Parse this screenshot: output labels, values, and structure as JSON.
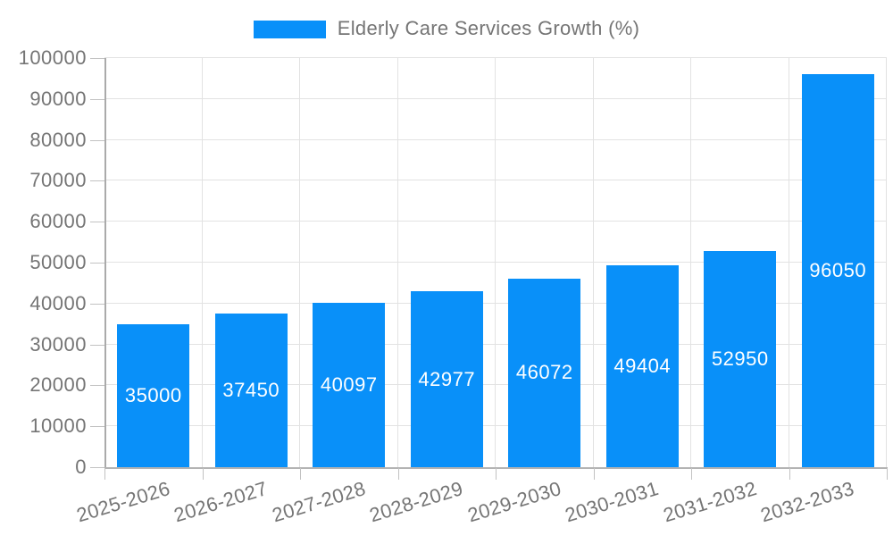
{
  "legend": {
    "position": "top-center"
  },
  "chart_data": {
    "type": "bar",
    "title": "Elderly Care Services Growth (%)",
    "categories": [
      "2025-2026",
      "2026-2027",
      "2027-2028",
      "2028-2029",
      "2029-2030",
      "2030-2031",
      "2031-2032",
      "2032-2033"
    ],
    "values": [
      35000,
      37450,
      40097,
      42977,
      46072,
      49404,
      52950,
      96050
    ],
    "value_labels": [
      "35000",
      "37450",
      "40097",
      "42977",
      "46072",
      "49404",
      "52950",
      "96050"
    ],
    "yticks": [
      "0",
      "10000",
      "20000",
      "30000",
      "40000",
      "50000",
      "60000",
      "70000",
      "80000",
      "90000",
      "100000"
    ],
    "ylim": [
      0,
      100000
    ],
    "xlabel": "",
    "ylabel": "",
    "grid": true,
    "legend_position": "top-center",
    "bar_color": "#0990f9",
    "value_label_color": "#ffffff",
    "axis_text_color": "#757575",
    "grid_color": "#e2e2e2",
    "axis_line_color": "#aaaaaa",
    "background_color": "#ffffff"
  }
}
